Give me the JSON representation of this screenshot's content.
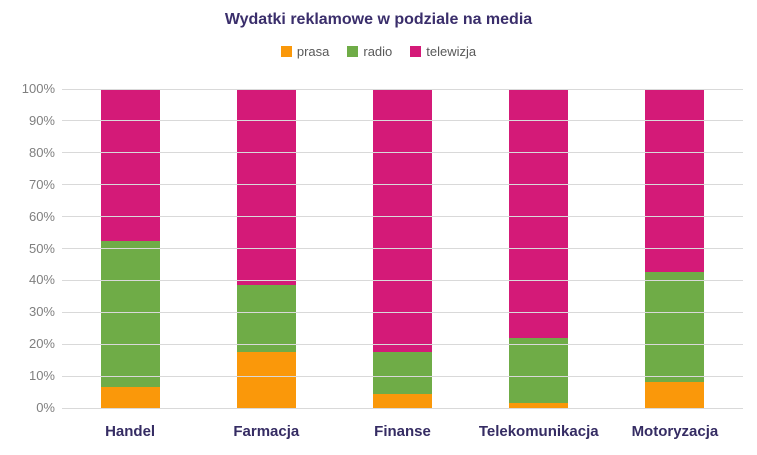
{
  "chart": {
    "title": "Wydatki reklamowe w podziale na media"
  },
  "chart_data": {
    "type": "bar",
    "stacked": true,
    "percent_stacked": true,
    "title": "Wydatki reklamowe w podziale na media",
    "categories": [
      "Handel",
      "Farmacja",
      "Finanse",
      "Telekomunikacja",
      "Motoryzacja"
    ],
    "series": [
      {
        "name": "prasa",
        "color": "#FA980A",
        "values": [
          6.5,
          17.5,
          4.5,
          1.5,
          8
        ]
      },
      {
        "name": "radio",
        "color": "#6FAC47",
        "values": [
          46,
          21,
          13,
          20.5,
          34.5
        ]
      },
      {
        "name": "telewizja",
        "color": "#D41A78",
        "values": [
          47.5,
          61.5,
          82.5,
          78,
          57.5
        ]
      }
    ],
    "xlabel": "",
    "ylabel": "",
    "ylim": [
      0,
      100
    ],
    "yticks": [
      "0%",
      "10%",
      "20%",
      "30%",
      "40%",
      "50%",
      "60%",
      "70%",
      "80%",
      "90%",
      "100%"
    ],
    "grid": true,
    "legend_position": "top"
  },
  "colors": {
    "background": "#FFFFFF",
    "title": "#3A2E6B",
    "category_label": "#352C63",
    "tick_label": "#7F7F7F",
    "legend_label": "#595959",
    "gridline": "#D9D9D9"
  }
}
